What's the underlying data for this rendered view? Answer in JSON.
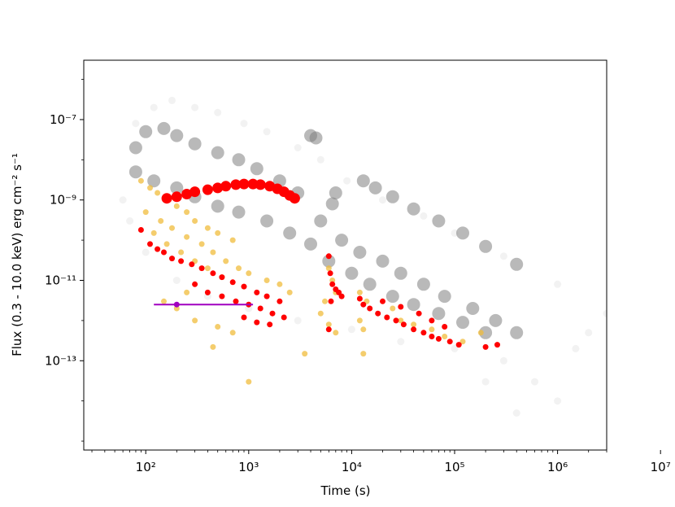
{
  "chart_data": {
    "type": "scatter",
    "title": "",
    "xlabel": "Time (s)",
    "ylabel": "Flux (0.3 - 10.0 keV) erg cm⁻² s⁻¹",
    "x_scale": "log",
    "y_scale": "log",
    "xlim": [
      25,
      3000000
    ],
    "ylim": [
      6e-16,
      3e-06
    ],
    "grid": false,
    "x_ticks": [
      {
        "value": 100,
        "label": "10²"
      },
      {
        "value": 1000,
        "label": "10³"
      },
      {
        "value": 10000,
        "label": "10⁴"
      },
      {
        "value": 100000,
        "label": "10⁵"
      },
      {
        "value": 1000000,
        "label": "10⁶"
      },
      {
        "value": 10000000,
        "label": "10⁷"
      }
    ],
    "y_ticks": [
      {
        "value": 1e-07,
        "label": "10⁻⁷"
      },
      {
        "value": 1e-09,
        "label": "10⁻⁹"
      },
      {
        "value": 1e-11,
        "label": "10⁻¹¹"
      },
      {
        "value": 1e-13,
        "label": "10⁻¹³"
      }
    ],
    "colors": {
      "background_population": "#808080",
      "comparison_population": "#f0bc3c",
      "highlight": "#ff0000",
      "special_point": "#a000c0",
      "axes": "#000000"
    },
    "series": [
      {
        "role": "background-light",
        "color": "#b8b8b8",
        "points": [
          [
            80,
            8e-08
          ],
          [
            120,
            2e-07
          ],
          [
            180,
            3e-07
          ],
          [
            300,
            2e-07
          ],
          [
            500,
            1.5e-07
          ],
          [
            900,
            8e-08
          ],
          [
            1500,
            5e-08
          ],
          [
            3000,
            2e-08
          ],
          [
            5000,
            1e-08
          ],
          [
            9000,
            3e-09
          ],
          [
            20000,
            1e-09
          ],
          [
            50000,
            4e-10
          ],
          [
            100000,
            1.5e-10
          ],
          [
            300000,
            4e-11
          ],
          [
            1000000,
            8e-12
          ],
          [
            3000000,
            1.5e-12
          ],
          [
            5000000,
            6e-13
          ],
          [
            60,
            1e-09
          ],
          [
            70,
            3e-10
          ],
          [
            100,
            5e-11
          ],
          [
            200,
            1e-11
          ],
          [
            400,
            4e-12
          ],
          [
            1000,
            2e-12
          ],
          [
            3000,
            1e-12
          ],
          [
            10000,
            6e-13
          ],
          [
            30000,
            3e-13
          ],
          [
            100000,
            2e-13
          ],
          [
            300000,
            1e-13
          ],
          [
            600000,
            3e-14
          ],
          [
            1000000,
            1e-14
          ],
          [
            200000,
            3e-14
          ],
          [
            400000,
            5e-15
          ],
          [
            1500000,
            2e-13
          ],
          [
            2000000,
            5e-13
          ]
        ]
      },
      {
        "role": "background-dense",
        "color": "#808080",
        "points": [
          [
            80,
            2e-08
          ],
          [
            100,
            5e-08
          ],
          [
            150,
            6e-08
          ],
          [
            200,
            4e-08
          ],
          [
            300,
            2.5e-08
          ],
          [
            500,
            1.5e-08
          ],
          [
            800,
            1e-08
          ],
          [
            1200,
            6e-09
          ],
          [
            2000,
            3e-09
          ],
          [
            3000,
            1.5e-09
          ],
          [
            80,
            5e-09
          ],
          [
            120,
            3e-09
          ],
          [
            200,
            2e-09
          ],
          [
            300,
            1.2e-09
          ],
          [
            500,
            7e-10
          ],
          [
            800,
            5e-10
          ],
          [
            1500,
            3e-10
          ],
          [
            2500,
            1.5e-10
          ],
          [
            4000,
            8e-11
          ],
          [
            6000,
            3e-11
          ],
          [
            10000,
            1.5e-11
          ],
          [
            15000,
            8e-12
          ],
          [
            25000,
            4e-12
          ],
          [
            40000,
            2.5e-12
          ],
          [
            70000,
            1.5e-12
          ],
          [
            120000,
            9e-13
          ],
          [
            200000,
            5e-13
          ],
          [
            5000,
            3e-10
          ],
          [
            8000,
            1e-10
          ],
          [
            12000,
            5e-11
          ],
          [
            20000,
            3e-11
          ],
          [
            30000,
            1.5e-11
          ],
          [
            50000,
            8e-12
          ],
          [
            80000,
            4e-12
          ],
          [
            150000,
            2e-12
          ],
          [
            250000,
            1e-12
          ],
          [
            400000,
            5e-13
          ],
          [
            4000,
            4e-08
          ],
          [
            4500,
            3.5e-08
          ],
          [
            13000,
            3e-09
          ],
          [
            17000,
            2e-09
          ],
          [
            25000,
            1.2e-09
          ],
          [
            40000,
            6e-10
          ],
          [
            70000,
            3e-10
          ],
          [
            120000,
            1.5e-10
          ],
          [
            200000,
            7e-11
          ],
          [
            400000,
            2.5e-11
          ],
          [
            7000,
            1.5e-09
          ],
          [
            6500,
            8e-10
          ]
        ]
      },
      {
        "role": "comparison",
        "color": "#f0bc3c",
        "points": [
          [
            90,
            3e-09
          ],
          [
            110,
            2e-09
          ],
          [
            130,
            1.5e-09
          ],
          [
            160,
            1e-09
          ],
          [
            200,
            7e-10
          ],
          [
            250,
            5e-10
          ],
          [
            300,
            3e-10
          ],
          [
            400,
            2e-10
          ],
          [
            500,
            1.5e-10
          ],
          [
            700,
            1e-10
          ],
          [
            100,
            5e-10
          ],
          [
            140,
            3e-10
          ],
          [
            180,
            2e-10
          ],
          [
            250,
            1.2e-10
          ],
          [
            350,
            8e-11
          ],
          [
            450,
            5e-11
          ],
          [
            600,
            3e-11
          ],
          [
            800,
            2e-11
          ],
          [
            1000,
            1.5e-11
          ],
          [
            1500,
            1e-11
          ],
          [
            2000,
            8e-12
          ],
          [
            2500,
            5e-12
          ],
          [
            120,
            1.5e-10
          ],
          [
            160,
            8e-11
          ],
          [
            220,
            5e-11
          ],
          [
            300,
            3e-11
          ],
          [
            400,
            2e-11
          ],
          [
            550,
            1.2e-11
          ],
          [
            150,
            3e-12
          ],
          [
            200,
            2e-12
          ],
          [
            300,
            1e-12
          ],
          [
            500,
            7e-13
          ],
          [
            700,
            5e-13
          ],
          [
            6000,
            2e-11
          ],
          [
            6500,
            1e-11
          ],
          [
            7000,
            5e-12
          ],
          [
            5500,
            3e-12
          ],
          [
            5000,
            1.5e-12
          ],
          [
            6000,
            8e-13
          ],
          [
            7000,
            5e-13
          ],
          [
            12000,
            5e-12
          ],
          [
            14000,
            3e-12
          ],
          [
            12000,
            1e-12
          ],
          [
            13000,
            6e-13
          ],
          [
            25000,
            2e-12
          ],
          [
            30000,
            1e-12
          ],
          [
            40000,
            8e-13
          ],
          [
            60000,
            6e-13
          ],
          [
            80000,
            4e-13
          ],
          [
            120000,
            3e-13
          ],
          [
            180000,
            5e-13
          ],
          [
            3500,
            1.5e-13
          ],
          [
            13000,
            1.5e-13
          ],
          [
            450,
            2.2e-13
          ],
          [
            1000,
            3e-14
          ],
          [
            250,
            5e-12
          ]
        ]
      },
      {
        "role": "highlight-plateau",
        "color": "#ff0000",
        "points": [
          [
            160,
            1.1e-09
          ],
          [
            200,
            1.2e-09
          ],
          [
            250,
            1.4e-09
          ],
          [
            300,
            1.6e-09
          ],
          [
            400,
            1.8e-09
          ],
          [
            500,
            2e-09
          ],
          [
            600,
            2.2e-09
          ],
          [
            750,
            2.4e-09
          ],
          [
            900,
            2.5e-09
          ],
          [
            1100,
            2.5e-09
          ],
          [
            1300,
            2.4e-09
          ],
          [
            1600,
            2.2e-09
          ],
          [
            1900,
            1.9e-09
          ],
          [
            2200,
            1.6e-09
          ],
          [
            2500,
            1.3e-09
          ],
          [
            2800,
            1.1e-09
          ]
        ]
      },
      {
        "role": "highlight",
        "color": "#ff0000",
        "points": [
          [
            90,
            1.8e-10
          ],
          [
            110,
            8e-11
          ],
          [
            130,
            6e-11
          ],
          [
            150,
            5e-11
          ],
          [
            180,
            3.5e-11
          ],
          [
            220,
            3e-11
          ],
          [
            280,
            2.5e-11
          ],
          [
            350,
            2e-11
          ],
          [
            450,
            1.5e-11
          ],
          [
            550,
            1.2e-11
          ],
          [
            700,
            9e-12
          ],
          [
            900,
            7e-12
          ],
          [
            1200,
            5e-12
          ],
          [
            1500,
            4e-12
          ],
          [
            2000,
            3e-12
          ],
          [
            300,
            8e-12
          ],
          [
            400,
            5e-12
          ],
          [
            550,
            4e-12
          ],
          [
            750,
            3e-12
          ],
          [
            1000,
            2.5e-12
          ],
          [
            1300,
            2e-12
          ],
          [
            1700,
            1.5e-12
          ],
          [
            2200,
            1.2e-12
          ],
          [
            900,
            1.2e-12
          ],
          [
            1200,
            9e-13
          ],
          [
            1600,
            8e-13
          ],
          [
            6000,
            4e-11
          ],
          [
            6200,
            1.5e-11
          ],
          [
            6500,
            8e-12
          ],
          [
            7000,
            6e-12
          ],
          [
            7500,
            5e-12
          ],
          [
            8000,
            4e-12
          ],
          [
            6300,
            3e-12
          ],
          [
            6000,
            6e-13
          ],
          [
            12000,
            3.5e-12
          ],
          [
            13000,
            2.5e-12
          ],
          [
            15000,
            2e-12
          ],
          [
            18000,
            1.5e-12
          ],
          [
            22000,
            1.2e-12
          ],
          [
            27000,
            1e-12
          ],
          [
            32000,
            8e-13
          ],
          [
            40000,
            6e-13
          ],
          [
            50000,
            5e-13
          ],
          [
            60000,
            4e-13
          ],
          [
            70000,
            3.5e-13
          ],
          [
            90000,
            3e-13
          ],
          [
            110000,
            2.5e-13
          ],
          [
            20000,
            3e-12
          ],
          [
            30000,
            2.2e-12
          ],
          [
            45000,
            1.5e-12
          ],
          [
            60000,
            1e-12
          ],
          [
            80000,
            7e-13
          ],
          [
            200000,
            2.2e-13
          ],
          [
            260000,
            2.5e-13
          ]
        ]
      }
    ],
    "special_point": {
      "x": 200,
      "y": 2.5e-12,
      "x_err": [
        120,
        1100
      ]
    }
  }
}
